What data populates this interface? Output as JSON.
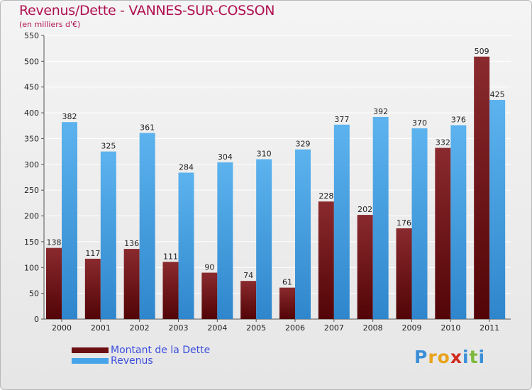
{
  "header": {
    "title": "Revenus/Dette - VANNES-SUR-COSSON",
    "subtitle": "(en milliers d'€)"
  },
  "chart_data": {
    "type": "bar",
    "title": "Revenus/Dette - VANNES-SUR-COSSON",
    "ylabel": "(en milliers d'€)",
    "xlabel": "",
    "ylim": [
      0,
      550
    ],
    "yticks": [
      0,
      50,
      100,
      150,
      200,
      250,
      300,
      350,
      400,
      450,
      500,
      550
    ],
    "grid": true,
    "categories": [
      "2000",
      "2001",
      "2002",
      "2003",
      "2004",
      "2005",
      "2006",
      "2007",
      "2008",
      "2009",
      "2010",
      "2011"
    ],
    "series": [
      {
        "name": "Montant de la Dette",
        "color": "#7a1e22",
        "values": [
          138,
          117,
          136,
          111,
          90,
          74,
          61,
          228,
          202,
          176,
          332,
          509
        ]
      },
      {
        "name": "Revenus",
        "color": "#45a5e8",
        "values": [
          382,
          325,
          361,
          284,
          304,
          310,
          329,
          377,
          392,
          370,
          376,
          425
        ]
      }
    ],
    "legend_position": "bottom-left"
  },
  "legend": {
    "items": [
      {
        "label": "Montant de la Dette",
        "color": "#6b0f12"
      },
      {
        "label": "Revenus",
        "color": "#45a5e8"
      }
    ]
  },
  "logo": {
    "letters": [
      "P",
      "r",
      "o",
      "x",
      "i",
      "t",
      "i"
    ],
    "colors": [
      "#3a8fd8",
      "#e9a41c",
      "#e9a41c",
      "#d02a1e",
      "#3a8fd8",
      "#7db93a",
      "#3a8fd8"
    ]
  }
}
